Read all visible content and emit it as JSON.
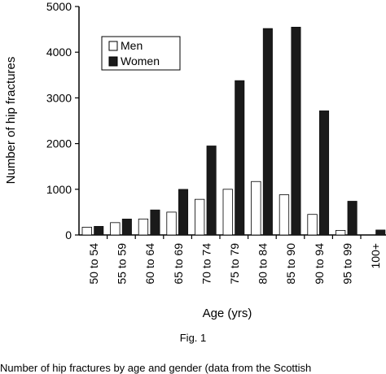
{
  "chart_data": {
    "type": "bar",
    "title": "",
    "xlabel": "Age (yrs)",
    "ylabel": "Number of hip fractures",
    "ylim": [
      0,
      5000
    ],
    "yticks": [
      0,
      1000,
      2000,
      3000,
      4000,
      5000
    ],
    "categories": [
      "50 to 54",
      "55 to 59",
      "60 to 64",
      "65 to 69",
      "70 to 74",
      "75 to 79",
      "80 to 84",
      "85 to 90",
      "90 to 94",
      "95 to 99",
      "100+"
    ],
    "series": [
      {
        "name": "Men",
        "color": "#ffffff",
        "values": [
          170,
          270,
          350,
          500,
          780,
          1000,
          1170,
          880,
          450,
          100,
          0
        ]
      },
      {
        "name": "Women",
        "color": "#1a1a1a",
        "values": [
          190,
          350,
          550,
          1000,
          1950,
          3380,
          4520,
          4550,
          2720,
          740,
          110
        ]
      }
    ],
    "legend_position": "top-left",
    "grid": false
  },
  "figure_label": "Fig. 1",
  "caption_partial": "Number of hip fractures by age and gender (data from the Scottish"
}
